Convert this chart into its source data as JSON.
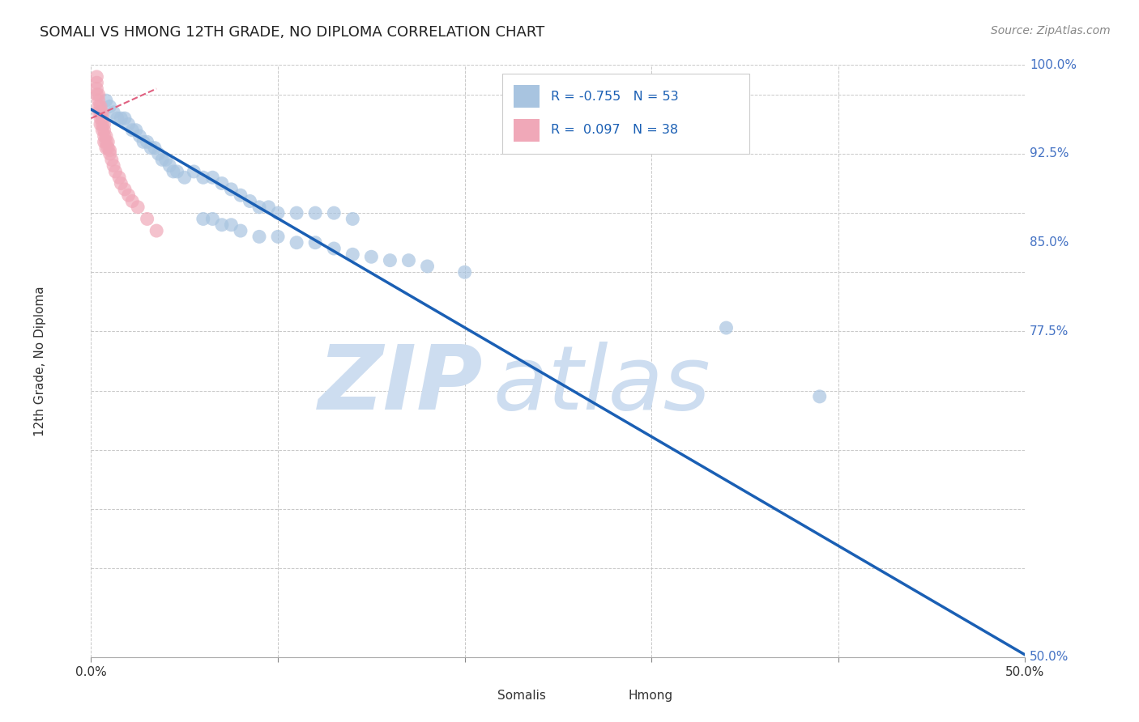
{
  "title": "SOMALI VS HMONG 12TH GRADE, NO DIPLOMA CORRELATION CHART",
  "source_text": "Source: ZipAtlas.com",
  "ylabel": "12th Grade, No Diploma",
  "xlim": [
    0.0,
    0.5
  ],
  "ylim": [
    0.5,
    1.0
  ],
  "background_color": "#ffffff",
  "grid_color": "#c8c8c8",
  "watermark_line1": "ZIP",
  "watermark_line2": "atlas",
  "watermark_color": "#cdddf0",
  "somali_color": "#a8c4e0",
  "hmong_color": "#f0a8b8",
  "somali_line_color": "#1a5fb4",
  "hmong_line_color": "#e06080",
  "legend_somali_R": "-0.755",
  "legend_somali_N": "53",
  "legend_hmong_R": "0.097",
  "legend_hmong_N": "38",
  "somali_x": [
    0.008,
    0.01,
    0.012,
    0.014,
    0.016,
    0.018,
    0.02,
    0.022,
    0.024,
    0.026,
    0.028,
    0.03,
    0.032,
    0.034,
    0.036,
    0.038,
    0.04,
    0.042,
    0.044,
    0.046,
    0.05,
    0.055,
    0.06,
    0.065,
    0.07,
    0.075,
    0.08,
    0.085,
    0.09,
    0.095,
    0.1,
    0.11,
    0.12,
    0.13,
    0.14,
    0.06,
    0.065,
    0.07,
    0.075,
    0.08,
    0.09,
    0.1,
    0.11,
    0.12,
    0.13,
    0.14,
    0.15,
    0.16,
    0.17,
    0.18,
    0.2,
    0.34,
    0.39
  ],
  "somali_y": [
    0.97,
    0.965,
    0.96,
    0.955,
    0.955,
    0.955,
    0.95,
    0.945,
    0.945,
    0.94,
    0.935,
    0.935,
    0.93,
    0.93,
    0.925,
    0.92,
    0.92,
    0.915,
    0.91,
    0.91,
    0.905,
    0.91,
    0.905,
    0.905,
    0.9,
    0.895,
    0.89,
    0.885,
    0.88,
    0.88,
    0.875,
    0.875,
    0.875,
    0.875,
    0.87,
    0.87,
    0.87,
    0.865,
    0.865,
    0.86,
    0.855,
    0.855,
    0.85,
    0.85,
    0.845,
    0.84,
    0.838,
    0.835,
    0.835,
    0.83,
    0.825,
    0.778,
    0.72
  ],
  "hmong_x": [
    0.003,
    0.003,
    0.003,
    0.003,
    0.004,
    0.004,
    0.004,
    0.004,
    0.005,
    0.005,
    0.005,
    0.005,
    0.006,
    0.006,
    0.006,
    0.006,
    0.007,
    0.007,
    0.007,
    0.007,
    0.008,
    0.008,
    0.008,
    0.009,
    0.009,
    0.01,
    0.01,
    0.011,
    0.012,
    0.013,
    0.015,
    0.016,
    0.018,
    0.02,
    0.022,
    0.025,
    0.03,
    0.035
  ],
  "hmong_y": [
    0.99,
    0.985,
    0.98,
    0.975,
    0.975,
    0.97,
    0.965,
    0.96,
    0.965,
    0.96,
    0.955,
    0.95,
    0.96,
    0.955,
    0.95,
    0.945,
    0.95,
    0.945,
    0.94,
    0.935,
    0.94,
    0.935,
    0.93,
    0.935,
    0.93,
    0.928,
    0.925,
    0.92,
    0.915,
    0.91,
    0.905,
    0.9,
    0.895,
    0.89,
    0.885,
    0.88,
    0.87,
    0.86
  ],
  "blue_line_x": [
    0.0,
    0.502
  ],
  "blue_line_y": [
    0.9625,
    0.5
  ],
  "pink_line_x": [
    0.0,
    0.035
  ],
  "pink_line_y": [
    0.955,
    0.98
  ],
  "right_yticks": [
    1.0,
    0.925,
    0.85,
    0.775,
    0.5
  ],
  "right_yticklabels": [
    "100.0%",
    "92.5%",
    "85.0%",
    "77.5%",
    "50.0%"
  ],
  "xtick_positions": [
    0.0,
    0.1,
    0.2,
    0.3,
    0.4,
    0.5
  ],
  "xtick_labels": [
    "0.0%",
    "",
    "",
    "",
    "",
    "50.0%"
  ]
}
